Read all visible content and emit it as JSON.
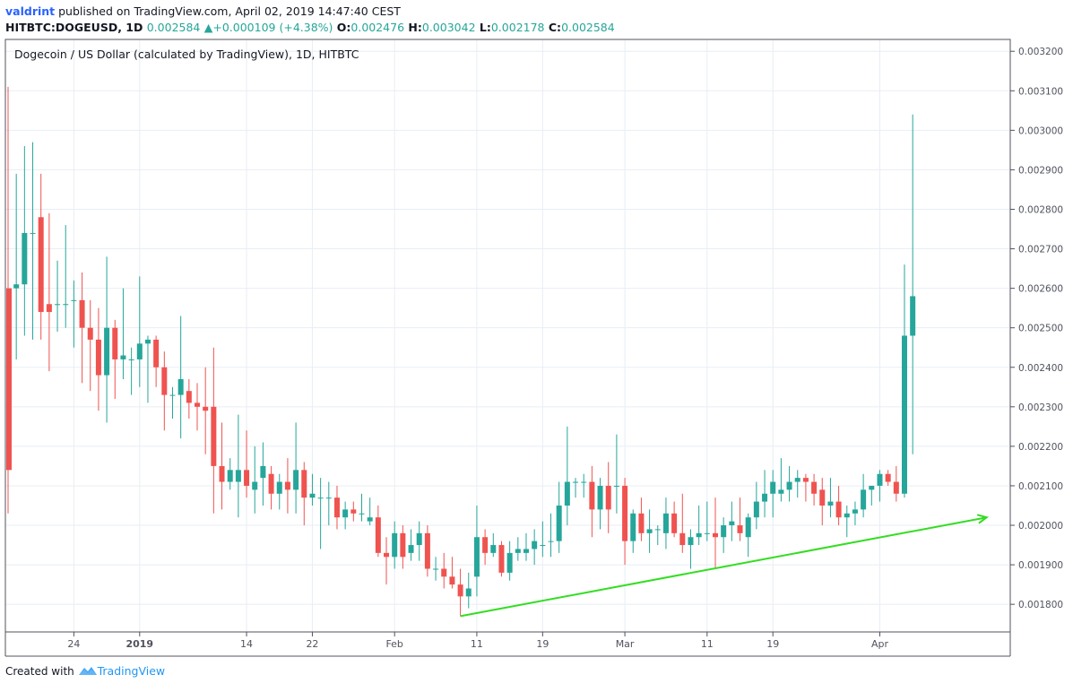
{
  "header": {
    "author": "valdrint",
    "published_text": "published on TradingView.com, April 02, 2019 14:47:40 CEST",
    "symbol": "HITBTC:DOGEUSD, 1D",
    "change": "+0.000109 (+4.38%)",
    "open_label": "O:",
    "open": "0.002476",
    "high_label": "H:",
    "high": "0.003042",
    "low_label": "L:",
    "low": "0.002178",
    "close_label": "C:",
    "close": "0.002584"
  },
  "chart_data": {
    "type": "candlestick",
    "title": "Dogecoin / US Dollar (calculated by TradingView), 1D, HITBTC",
    "y_axis": {
      "position": "right",
      "range": [
        0.00173,
        0.00323
      ],
      "ticks": [
        "0.003200",
        "0.003100",
        "0.003000",
        "0.002900",
        "0.002800",
        "0.002700",
        "0.002600",
        "0.002500",
        "0.002400",
        "0.002300",
        "0.002200",
        "0.002100",
        "0.002000",
        "0.001900",
        "0.001800"
      ]
    },
    "x_axis": {
      "range": [
        0,
        118
      ],
      "ticks": [
        {
          "label": "24",
          "i": 8
        },
        {
          "label": "2019",
          "i": 16
        },
        {
          "label": "14",
          "i": 29
        },
        {
          "label": "22",
          "i": 37
        },
        {
          "label": "Feb",
          "i": 47
        },
        {
          "label": "11",
          "i": 57
        },
        {
          "label": "19",
          "i": 65
        },
        {
          "label": "Mar",
          "i": 75
        },
        {
          "label": "11",
          "i": 85
        },
        {
          "label": "19",
          "i": 93
        },
        {
          "label": "Apr",
          "i": 106
        }
      ]
    },
    "grid": true,
    "candles": [
      [
        0.0026,
        0.00311,
        0.00203,
        0.00214
      ],
      [
        0.0026,
        0.00289,
        0.00242,
        0.00261
      ],
      [
        0.00261,
        0.00296,
        0.00248,
        0.00274
      ],
      [
        0.00274,
        0.00297,
        0.00247,
        0.00274
      ],
      [
        0.00278,
        0.00289,
        0.00247,
        0.00254
      ],
      [
        0.00256,
        0.00279,
        0.00239,
        0.00254
      ],
      [
        0.00256,
        0.00267,
        0.00249,
        0.00256
      ],
      [
        0.00256,
        0.00276,
        0.0025,
        0.00256
      ],
      [
        0.00257,
        0.00262,
        0.00245,
        0.00257
      ],
      [
        0.00257,
        0.00264,
        0.00236,
        0.0025
      ],
      [
        0.0025,
        0.00257,
        0.00234,
        0.00247
      ],
      [
        0.00247,
        0.00255,
        0.00229,
        0.00238
      ],
      [
        0.00238,
        0.00268,
        0.00226,
        0.0025
      ],
      [
        0.0025,
        0.00252,
        0.00232,
        0.00242
      ],
      [
        0.00242,
        0.0026,
        0.00237,
        0.00243
      ],
      [
        0.00242,
        0.00245,
        0.00233,
        0.00242
      ],
      [
        0.00242,
        0.00263,
        0.00235,
        0.00246
      ],
      [
        0.00246,
        0.00248,
        0.00231,
        0.00247
      ],
      [
        0.00247,
        0.00248,
        0.00235,
        0.0024
      ],
      [
        0.0024,
        0.00244,
        0.00224,
        0.00233
      ],
      [
        0.00233,
        0.00235,
        0.00227,
        0.00233
      ],
      [
        0.00233,
        0.00253,
        0.00222,
        0.00237
      ],
      [
        0.00234,
        0.00237,
        0.00227,
        0.00231
      ],
      [
        0.00231,
        0.00236,
        0.00224,
        0.0023
      ],
      [
        0.0023,
        0.0024,
        0.00218,
        0.00229
      ],
      [
        0.0023,
        0.00245,
        0.00203,
        0.00215
      ],
      [
        0.00215,
        0.00226,
        0.00204,
        0.00211
      ],
      [
        0.00211,
        0.00217,
        0.00209,
        0.00214
      ],
      [
        0.00211,
        0.00228,
        0.00202,
        0.00214
      ],
      [
        0.00214,
        0.00224,
        0.00207,
        0.0021
      ],
      [
        0.00209,
        0.0022,
        0.00203,
        0.00211
      ],
      [
        0.00212,
        0.00221,
        0.00205,
        0.00215
      ],
      [
        0.00213,
        0.00215,
        0.00204,
        0.00208
      ],
      [
        0.00208,
        0.00213,
        0.00204,
        0.00211
      ],
      [
        0.00211,
        0.00217,
        0.00203,
        0.00209
      ],
      [
        0.00209,
        0.00226,
        0.00203,
        0.00214
      ],
      [
        0.00214,
        0.00216,
        0.002,
        0.00207
      ],
      [
        0.00207,
        0.00213,
        0.00205,
        0.00208
      ],
      [
        0.00207,
        0.00212,
        0.00194,
        0.00207
      ],
      [
        0.00207,
        0.00211,
        0.002,
        0.00207
      ],
      [
        0.00207,
        0.0021,
        0.00199,
        0.00202
      ],
      [
        0.00202,
        0.00206,
        0.00199,
        0.00204
      ],
      [
        0.00204,
        0.00206,
        0.00201,
        0.00203
      ],
      [
        0.00203,
        0.00208,
        0.00201,
        0.00203
      ],
      [
        0.00201,
        0.00207,
        0.002,
        0.00202
      ],
      [
        0.00202,
        0.00205,
        0.00192,
        0.00193
      ],
      [
        0.00193,
        0.00197,
        0.00185,
        0.00192
      ],
      [
        0.00192,
        0.00201,
        0.00189,
        0.00198
      ],
      [
        0.00198,
        0.002,
        0.00189,
        0.00192
      ],
      [
        0.00193,
        0.00199,
        0.00191,
        0.00195
      ],
      [
        0.00195,
        0.00201,
        0.00191,
        0.00198
      ],
      [
        0.00198,
        0.002,
        0.00187,
        0.00189
      ],
      [
        0.00189,
        0.00192,
        0.00186,
        0.00189
      ],
      [
        0.00189,
        0.00193,
        0.00184,
        0.00187
      ],
      [
        0.00187,
        0.00192,
        0.00184,
        0.00185
      ],
      [
        0.00185,
        0.00189,
        0.00177,
        0.00182
      ],
      [
        0.00182,
        0.00188,
        0.00179,
        0.00184
      ],
      [
        0.00187,
        0.00205,
        0.00182,
        0.00197
      ],
      [
        0.00197,
        0.00199,
        0.0019,
        0.00193
      ],
      [
        0.00193,
        0.00198,
        0.00192,
        0.00195
      ],
      [
        0.00195,
        0.00196,
        0.00187,
        0.00188
      ],
      [
        0.00188,
        0.00196,
        0.00186,
        0.00193
      ],
      [
        0.00193,
        0.00197,
        0.00191,
        0.00194
      ],
      [
        0.00193,
        0.00198,
        0.00191,
        0.00194
      ],
      [
        0.00194,
        0.00199,
        0.0019,
        0.00196
      ],
      [
        0.00195,
        0.00201,
        0.00192,
        0.00195
      ],
      [
        0.00196,
        0.00203,
        0.00192,
        0.00196
      ],
      [
        0.00196,
        0.00211,
        0.00193,
        0.00205
      ],
      [
        0.00205,
        0.00225,
        0.002,
        0.00211
      ],
      [
        0.00211,
        0.00212,
        0.00207,
        0.00211
      ],
      [
        0.00211,
        0.00213,
        0.00207,
        0.00211
      ],
      [
        0.00211,
        0.00215,
        0.00197,
        0.00204
      ],
      [
        0.00204,
        0.00212,
        0.00199,
        0.0021
      ],
      [
        0.0021,
        0.00216,
        0.00198,
        0.00204
      ],
      [
        0.0021,
        0.00223,
        0.00203,
        0.0021
      ],
      [
        0.0021,
        0.00212,
        0.0019,
        0.00196
      ],
      [
        0.00196,
        0.00204,
        0.00193,
        0.00203
      ],
      [
        0.00203,
        0.00207,
        0.00196,
        0.00198
      ],
      [
        0.00198,
        0.00204,
        0.00193,
        0.00199
      ],
      [
        0.00199,
        0.002,
        0.00195,
        0.00199
      ],
      [
        0.00198,
        0.00207,
        0.00194,
        0.00203
      ],
      [
        0.00203,
        0.00206,
        0.00197,
        0.00198
      ],
      [
        0.00198,
        0.00208,
        0.00193,
        0.00195
      ],
      [
        0.00195,
        0.00199,
        0.00189,
        0.00197
      ],
      [
        0.00197,
        0.00205,
        0.00195,
        0.00198
      ],
      [
        0.00198,
        0.00206,
        0.00196,
        0.00198
      ],
      [
        0.00198,
        0.00207,
        0.00189,
        0.00197
      ],
      [
        0.00197,
        0.00202,
        0.00193,
        0.002
      ],
      [
        0.002,
        0.00206,
        0.00196,
        0.00201
      ],
      [
        0.002,
        0.00207,
        0.00196,
        0.00198
      ],
      [
        0.00197,
        0.00203,
        0.00192,
        0.00202
      ],
      [
        0.00202,
        0.00211,
        0.00199,
        0.00206
      ],
      [
        0.00206,
        0.00214,
        0.00202,
        0.00208
      ],
      [
        0.00208,
        0.00214,
        0.00202,
        0.00211
      ],
      [
        0.00208,
        0.00217,
        0.00206,
        0.00209
      ],
      [
        0.00209,
        0.00215,
        0.00206,
        0.00211
      ],
      [
        0.00211,
        0.00214,
        0.00207,
        0.00212
      ],
      [
        0.00212,
        0.00213,
        0.00206,
        0.00211
      ],
      [
        0.00211,
        0.00213,
        0.00205,
        0.00208
      ],
      [
        0.00209,
        0.00212,
        0.002,
        0.00205
      ],
      [
        0.00205,
        0.00212,
        0.00202,
        0.00206
      ],
      [
        0.00206,
        0.0021,
        0.002,
        0.00202
      ],
      [
        0.00202,
        0.00205,
        0.00197,
        0.00203
      ],
      [
        0.00203,
        0.00206,
        0.002,
        0.00204
      ],
      [
        0.00204,
        0.00213,
        0.00202,
        0.00209
      ],
      [
        0.00209,
        0.0021,
        0.00205,
        0.0021
      ],
      [
        0.0021,
        0.00214,
        0.00206,
        0.00213
      ],
      [
        0.00213,
        0.00214,
        0.0021,
        0.00211
      ],
      [
        0.00211,
        0.00215,
        0.00206,
        0.00208
      ],
      [
        0.00208,
        0.00266,
        0.00207,
        0.00248
      ],
      [
        0.00248,
        0.00304,
        0.00218,
        0.00258
      ]
    ],
    "trendline": {
      "color": "#33dd22",
      "from": {
        "i": 55,
        "y": 0.00177
      },
      "to": {
        "i": 119,
        "y": 0.00202
      }
    },
    "colors": {
      "up": "#26a69a",
      "down": "#ef5350",
      "grid": "#e8eef5",
      "axis": "#50535e"
    }
  },
  "footer": {
    "created_with": "Created with",
    "brand": "TradingView"
  }
}
